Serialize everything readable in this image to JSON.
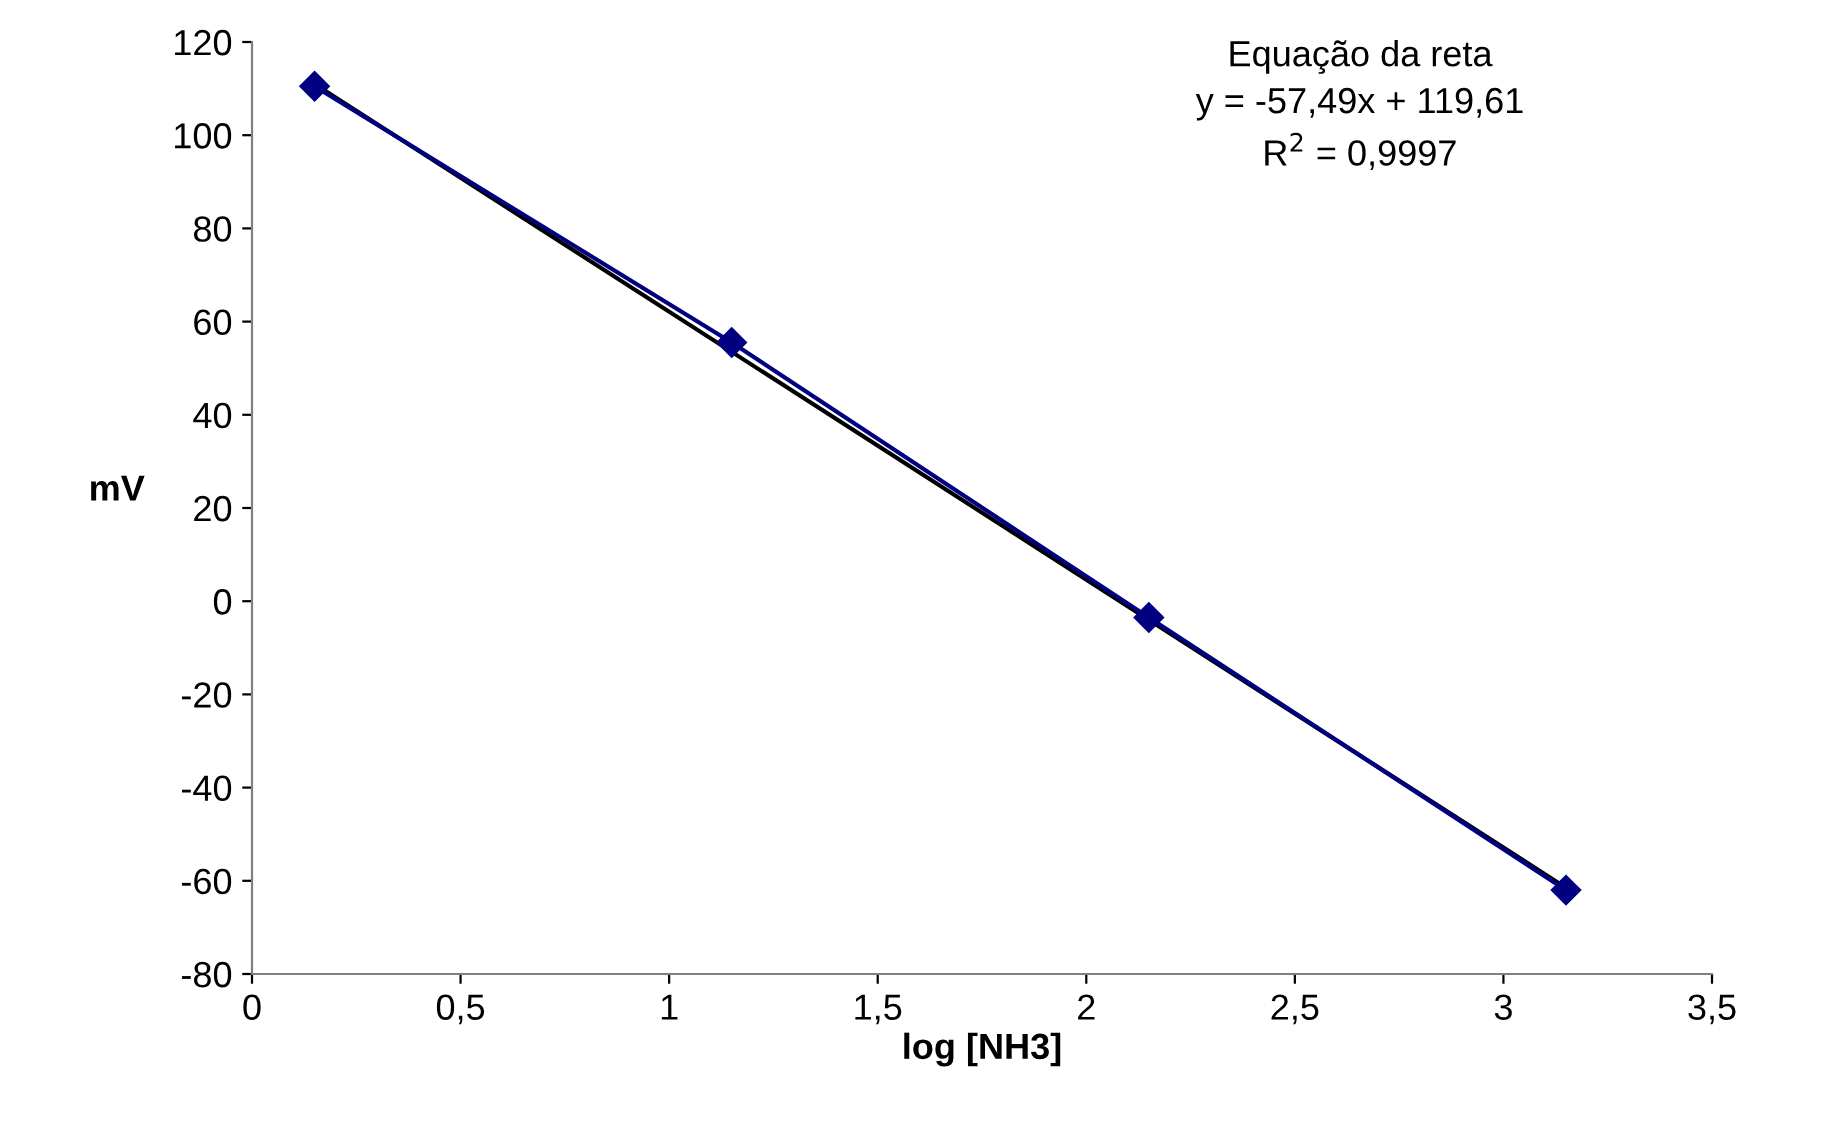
{
  "chart_data": {
    "type": "line",
    "xlabel": "log [NH3]",
    "ylabel": "mV",
    "series": [
      {
        "color": "#000000",
        "x": [
          0.15,
          3.15
        ],
        "values": [
          111.0,
          -61.5
        ],
        "marker": "none"
      },
      {
        "color": "#000080",
        "x": [
          0.15,
          1.15,
          2.15,
          3.15
        ],
        "values": [
          110.5,
          55.5,
          -3.5,
          -62
        ],
        "marker": "diamond"
      }
    ],
    "xlim": [
      0,
      3.5
    ],
    "xticks": [
      0,
      {
        "value": 0.5,
        "label": "0,5"
      },
      1,
      {
        "value": 1.5,
        "label": "1,5"
      },
      2,
      {
        "value": 2.5,
        "label": "2,5"
      },
      3,
      {
        "value": 3.5,
        "label": "3,5"
      }
    ],
    "ylim": [
      -80,
      120
    ],
    "yticks": [
      -80,
      -60,
      -40,
      -20,
      0,
      20,
      40,
      60,
      80,
      100,
      120
    ],
    "grid": false,
    "legend": false,
    "annotations": [
      "Equação da reta\ny = -57,49x + 119,61\nR$^{2}$ = 0,9997"
    ]
  }
}
